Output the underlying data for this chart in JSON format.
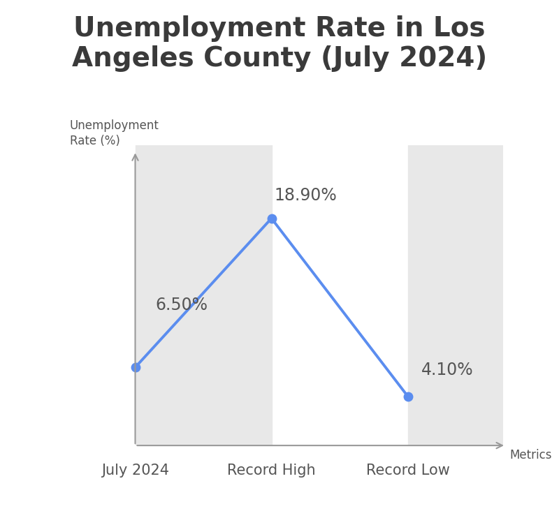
{
  "title": "Unemployment Rate in Los\nAngeles County (July 2024)",
  "xlabel": "Metrics",
  "ylabel": "Unemployment\nRate (%)",
  "categories": [
    "July 2024",
    "Record High",
    "Record Low"
  ],
  "values": [
    6.5,
    18.9,
    4.1
  ],
  "labels": [
    "6.50%",
    "18.90%",
    "4.10%"
  ],
  "line_color": "#5b8def",
  "marker_color": "#5b8def",
  "bg_stripe_color": "#e8e8e8",
  "title_color": "#3a3a3a",
  "label_color": "#555555",
  "axis_color": "#999999",
  "background_color": "#ffffff",
  "title_fontsize": 28,
  "label_fontsize": 17,
  "axis_label_fontsize": 12,
  "tick_label_fontsize": 15,
  "line_width": 2.8,
  "marker_size": 9
}
